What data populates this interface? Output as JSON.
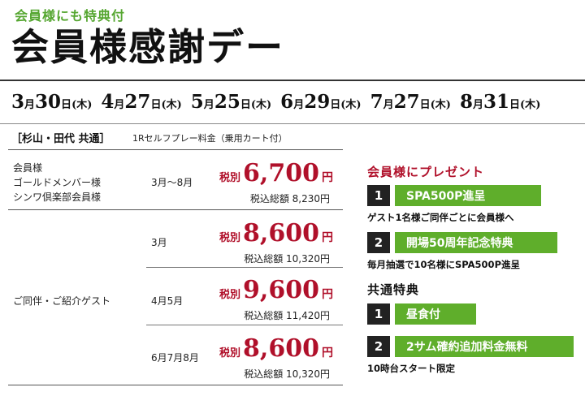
{
  "header": {
    "subtitle": "会員様にも特典付",
    "title": "会員様感謝デー"
  },
  "dates": [
    {
      "m": "3",
      "d": "30",
      "w": "木"
    },
    {
      "m": "4",
      "d": "27",
      "w": "木"
    },
    {
      "m": "5",
      "d": "25",
      "w": "木"
    },
    {
      "m": "6",
      "d": "29",
      "w": "木"
    },
    {
      "m": "7",
      "d": "27",
      "w": "木"
    },
    {
      "m": "8",
      "d": "31",
      "w": "木"
    }
  ],
  "date_units": {
    "month": "月",
    "day": "日"
  },
  "course": {
    "label": "［杉山・田代 共通］",
    "sub": "1Rセルフプレー料金（乗用カート付）"
  },
  "members": {
    "lines": [
      "会員様",
      "ゴールドメンバー様",
      "シンワ倶楽部会員様"
    ],
    "period": "3月～8月",
    "price_label": "税別",
    "price": "6,700",
    "yen": "円",
    "tax": "税込総額 8,230円"
  },
  "guests": {
    "label": "ご同伴・ご紹介ゲスト",
    "rows": [
      {
        "period": "3月",
        "price_label": "税別",
        "price": "8,600",
        "yen": "円",
        "tax": "税込総額 10,320円"
      },
      {
        "period": "4月5月",
        "price_label": "税別",
        "price": "9,600",
        "yen": "円",
        "tax": "税込総額 11,420円"
      },
      {
        "period": "6月7月8月",
        "price_label": "税別",
        "price": "8,600",
        "yen": "円",
        "tax": "税込総額 10,320円"
      }
    ]
  },
  "present": {
    "title": "会員様にプレゼント",
    "items": [
      {
        "num": "1",
        "label": "SPA500P進呈",
        "note": "ゲスト1名様ご同伴ごとに会員様へ"
      },
      {
        "num": "2",
        "label": "開場50周年記念特典",
        "note": "毎月抽選で10名様にSPA500P進呈"
      }
    ]
  },
  "common": {
    "title": "共通特典",
    "items": [
      {
        "num": "1",
        "label": "昼食付",
        "note": ""
      },
      {
        "num": "2",
        "label": "2サム確約追加料金無料",
        "note": "10時台スタート限定"
      }
    ]
  },
  "colors": {
    "accent_red": "#b0102a",
    "accent_green": "#5fae2b",
    "subtitle_green": "#55a630"
  }
}
